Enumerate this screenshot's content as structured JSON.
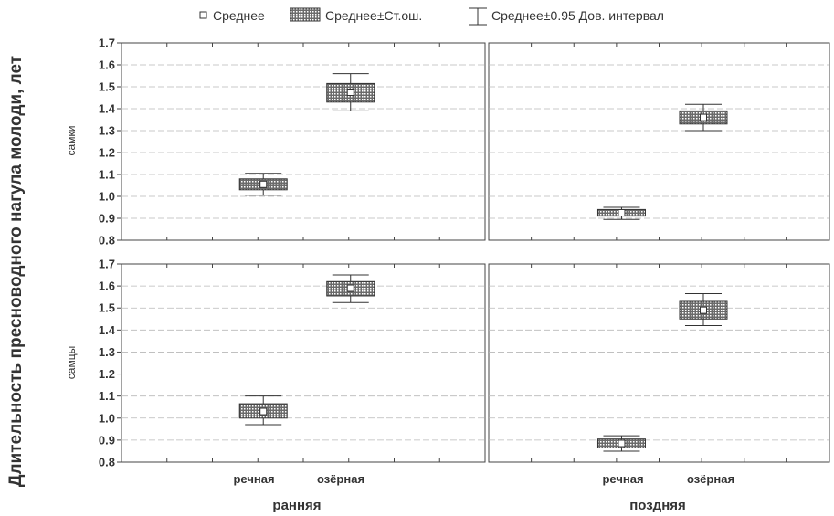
{
  "chart_data": {
    "type": "box",
    "ylabel": "Длительность пресноводного нагула молоди, лет",
    "ylim": [
      0.8,
      1.7
    ],
    "yticks": [
      "1.7",
      "1.6",
      "1.5",
      "1.4",
      "1.3",
      "1.2",
      "1.1",
      "1.0",
      "0.9",
      "0.8"
    ],
    "grid": true,
    "legend": {
      "placement": "top",
      "entries": [
        "Среднее",
        "Среднее±Ст.ош.",
        "Среднее±0.95 Дов. интервал"
      ]
    },
    "columns": [
      "ранняя",
      "поздняя"
    ],
    "rows": [
      "самки",
      "самцы"
    ],
    "categories": [
      "речная",
      "озёрная"
    ],
    "panels": [
      {
        "row": "самки",
        "column": "ранняя",
        "items": [
          {
            "category": "речная",
            "mean": 1.055,
            "se": [
              1.03,
              1.08
            ],
            "ci": [
              1.005,
              1.105
            ]
          },
          {
            "category": "озёрная",
            "mean": 1.475,
            "se": [
              1.43,
              1.515
            ],
            "ci": [
              1.39,
              1.56
            ]
          }
        ]
      },
      {
        "row": "самки",
        "column": "поздняя",
        "items": [
          {
            "category": "речная",
            "mean": 0.925,
            "se": [
              0.91,
              0.94
            ],
            "ci": [
              0.895,
              0.95
            ]
          },
          {
            "category": "озёрная",
            "mean": 1.36,
            "se": [
              1.33,
              1.39
            ],
            "ci": [
              1.3,
              1.42
            ]
          }
        ]
      },
      {
        "row": "самцы",
        "column": "ранняя",
        "items": [
          {
            "category": "речная",
            "mean": 1.03,
            "se": [
              1.0,
              1.065
            ],
            "ci": [
              0.97,
              1.1
            ]
          },
          {
            "category": "озёрная",
            "mean": 1.59,
            "se": [
              1.555,
              1.62
            ],
            "ci": [
              1.525,
              1.65
            ]
          }
        ]
      },
      {
        "row": "самцы",
        "column": "поздняя",
        "items": [
          {
            "category": "речная",
            "mean": 0.885,
            "se": [
              0.865,
              0.905
            ],
            "ci": [
              0.85,
              0.92
            ]
          },
          {
            "category": "озёрная",
            "mean": 1.49,
            "se": [
              1.45,
              1.53
            ],
            "ci": [
              1.42,
              1.565
            ]
          }
        ]
      }
    ]
  }
}
